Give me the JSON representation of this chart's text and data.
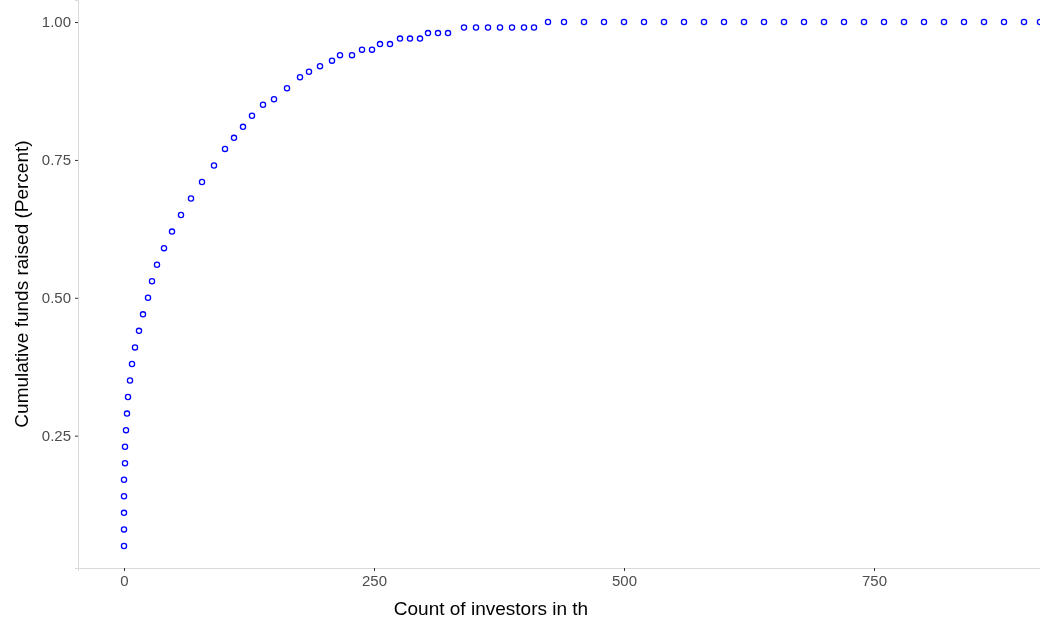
{
  "chart_data": {
    "type": "scatter",
    "xlabel": "Count of investors in th",
    "ylabel": "Cumulative funds raised (Percent)",
    "marker": "circle",
    "grid": false,
    "xlim": [
      -46,
      916
    ],
    "ylim": [
      0.01,
      1.04
    ],
    "xticks": [
      0,
      250,
      500,
      750
    ],
    "yticks": [
      {
        "value": 0.25,
        "label": "0.25"
      },
      {
        "value": 0.5,
        "label": "0.50"
      },
      {
        "value": 0.75,
        "label": "0.75"
      },
      {
        "value": 1,
        "label": "1.00"
      }
    ],
    "series": [
      {
        "color": "#0000ff",
        "x": [
          0,
          0,
          0,
          0,
          0,
          1,
          1,
          2,
          3,
          4,
          6,
          8,
          11,
          15,
          19,
          24,
          28,
          33,
          40,
          48,
          57,
          67,
          78,
          90,
          101,
          110,
          119,
          128,
          139,
          150,
          163,
          176,
          185,
          196,
          208,
          216,
          228,
          238,
          248,
          256,
          266,
          276,
          286,
          296,
          304,
          314,
          324,
          340,
          352,
          364,
          376,
          388,
          400,
          410,
          424,
          440,
          460,
          480,
          500,
          520,
          540,
          560,
          580,
          600,
          620,
          640,
          660,
          680,
          700,
          720,
          740,
          760,
          780,
          800,
          820,
          840,
          860,
          880,
          900,
          916
        ],
        "values": [
          0.05,
          0.08,
          0.11,
          0.14,
          0.17,
          0.2,
          0.23,
          0.26,
          0.29,
          0.32,
          0.35,
          0.38,
          0.41,
          0.44,
          0.47,
          0.5,
          0.53,
          0.56,
          0.59,
          0.62,
          0.65,
          0.68,
          0.71,
          0.74,
          0.77,
          0.79,
          0.81,
          0.83,
          0.85,
          0.86,
          0.88,
          0.9,
          0.91,
          0.92,
          0.93,
          0.94,
          0.94,
          0.95,
          0.95,
          0.96,
          0.96,
          0.97,
          0.97,
          0.97,
          0.98,
          0.98,
          0.98,
          0.99,
          0.99,
          0.99,
          0.99,
          0.99,
          0.99,
          0.99,
          1,
          1,
          1,
          1,
          1,
          1,
          1,
          1,
          1,
          1,
          1,
          1,
          1,
          1,
          1,
          1,
          1,
          1,
          1,
          1,
          1,
          1,
          1,
          1,
          1,
          1
        ]
      }
    ]
  }
}
